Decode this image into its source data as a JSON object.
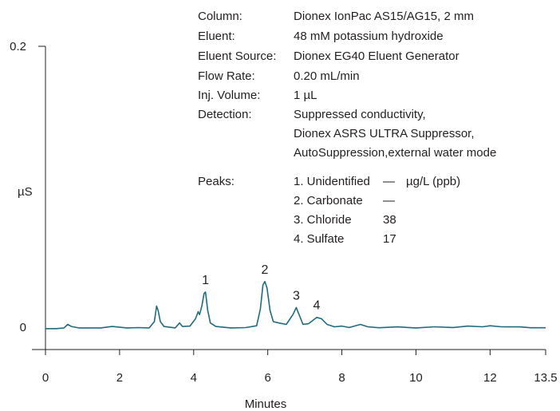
{
  "chart_data": {
    "type": "line",
    "xlabel": "Minutes",
    "ylabel": "µS",
    "xlim": [
      0,
      13.5
    ],
    "ylim": [
      -0.015,
      0.2
    ],
    "x_ticks": [
      "0",
      "2",
      "4",
      "6",
      "8",
      "10",
      "12",
      "13.5"
    ],
    "y_ticks": [
      "0.2",
      "0"
    ],
    "line_color": "#1f6b80",
    "series": [
      {
        "values": [
          [
            0,
            -0.001
          ],
          [
            0.3,
            -0.001
          ],
          [
            0.5,
            -0.0005
          ],
          [
            0.6,
            0.002
          ],
          [
            0.7,
            0.0005
          ],
          [
            0.9,
            -0.0005
          ],
          [
            1.5,
            -0.0005
          ],
          [
            1.8,
            0.0005
          ],
          [
            2.2,
            -0.0005
          ],
          [
            2.5,
            -0.0003
          ],
          [
            2.8,
            -0.0005
          ],
          [
            2.94,
            0.004
          ],
          [
            3.0,
            0.015
          ],
          [
            3.04,
            0.012
          ],
          [
            3.1,
            0.004
          ],
          [
            3.2,
            0.0005
          ],
          [
            3.5,
            -0.0005
          ],
          [
            3.62,
            0.003
          ],
          [
            3.7,
            0.0005
          ],
          [
            3.9,
            0.0008
          ],
          [
            4.05,
            0.006
          ],
          [
            4.12,
            0.011
          ],
          [
            4.16,
            0.009
          ],
          [
            4.22,
            0.015
          ],
          [
            4.28,
            0.024
          ],
          [
            4.32,
            0.025
          ],
          [
            4.38,
            0.012
          ],
          [
            4.45,
            0.003
          ],
          [
            4.6,
            0.0005
          ],
          [
            5.0,
            -0.0005
          ],
          [
            5.4,
            -0.0003
          ],
          [
            5.7,
            0.001
          ],
          [
            5.8,
            0.013
          ],
          [
            5.87,
            0.03
          ],
          [
            5.92,
            0.0325
          ],
          [
            5.98,
            0.028
          ],
          [
            6.06,
            0.012
          ],
          [
            6.15,
            0.004
          ],
          [
            6.3,
            0.003
          ],
          [
            6.5,
            0.002
          ],
          [
            6.68,
            0.009
          ],
          [
            6.77,
            0.014
          ],
          [
            6.86,
            0.008
          ],
          [
            6.95,
            0.002
          ],
          [
            7.1,
            0.0025
          ],
          [
            7.32,
            0.007
          ],
          [
            7.45,
            0.006
          ],
          [
            7.6,
            0.002
          ],
          [
            7.8,
            0.0003
          ],
          [
            8.0,
            0.0008
          ],
          [
            8.2,
            -0.0002
          ],
          [
            8.5,
            0.002
          ],
          [
            8.7,
            0.0003
          ],
          [
            9.0,
            -0.0004
          ],
          [
            9.5,
            0.0002
          ],
          [
            10.0,
            -0.0005
          ],
          [
            10.5,
            0.0003
          ],
          [
            11.0,
            -0.0002
          ],
          [
            11.4,
            0.0008
          ],
          [
            11.8,
            0.0003
          ],
          [
            12.0,
            0.001
          ],
          [
            12.3,
            0.0003
          ],
          [
            12.8,
            0.0002
          ],
          [
            13.1,
            -0.0004
          ],
          [
            13.5,
            -0.0004
          ]
        ]
      }
    ],
    "peak_labels": [
      {
        "label": "1",
        "x": 4.32,
        "y": 0.025
      },
      {
        "label": "2",
        "x": 5.92,
        "y": 0.0325
      },
      {
        "label": "3",
        "x": 6.77,
        "y": 0.014
      },
      {
        "label": "4",
        "x": 7.32,
        "y": 0.007
      }
    ]
  },
  "info": {
    "rows": [
      {
        "key": "Column:",
        "value": "Dionex IonPac AS15/AG15, 2 mm"
      },
      {
        "key": "Eluent:",
        "value": "48 mM potassium hydroxide"
      },
      {
        "key": "Eluent Source:",
        "value": "Dionex EG40 Eluent Generator"
      },
      {
        "key": "Flow Rate:",
        "value": "0.20 mL/min"
      },
      {
        "key": "Inj. Volume:",
        "value": "1 µL"
      },
      {
        "key": "Detection:",
        "value": "Suppressed conductivity,"
      },
      {
        "key": "",
        "value": "Dionex ASRS ULTRA Suppressor,"
      },
      {
        "key": "",
        "value": "AutoSuppression,external water mode"
      }
    ],
    "peaks_label": "Peaks:",
    "peaks": [
      {
        "name": "1. Unidentified",
        "amount": "—",
        "unit": "µg/L (ppb)"
      },
      {
        "name": "2. Carbonate",
        "amount": "—",
        "unit": ""
      },
      {
        "name": "3. Chloride",
        "amount": "38",
        "unit": ""
      },
      {
        "name": "4. Sulfate",
        "amount": "17",
        "unit": ""
      }
    ]
  }
}
